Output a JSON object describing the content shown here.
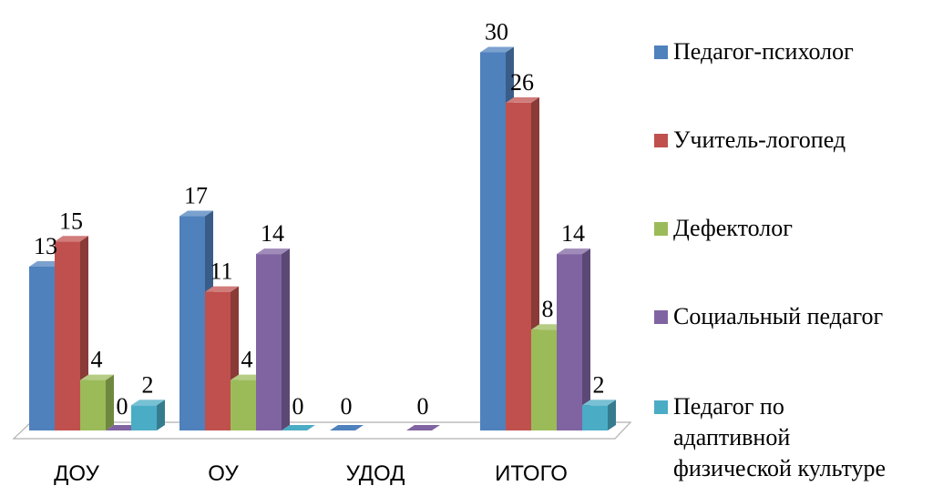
{
  "chart_data": {
    "type": "bar",
    "categories": [
      "ДОУ",
      "ОУ",
      "УДОД",
      "ИТОГО"
    ],
    "series": [
      {
        "name": "Педагог-психолог",
        "color": "#4F81BD",
        "values": [
          13,
          17,
          0,
          30
        ]
      },
      {
        "name": "Учитель-логопед",
        "color": "#C0504D",
        "values": [
          15,
          11,
          null,
          26
        ]
      },
      {
        "name": "Дефектолог",
        "color": "#9BBB59",
        "values": [
          4,
          4,
          null,
          8
        ]
      },
      {
        "name": "Социальный педагог",
        "color": "#8064A2",
        "values": [
          0,
          14,
          0,
          14
        ]
      },
      {
        "name": "Педагог по адаптивной физической культуре",
        "color": "#4BACC6",
        "values": [
          2,
          0,
          null,
          2
        ]
      }
    ],
    "legend_position": "right",
    "style": "3d-column",
    "grid": false
  }
}
